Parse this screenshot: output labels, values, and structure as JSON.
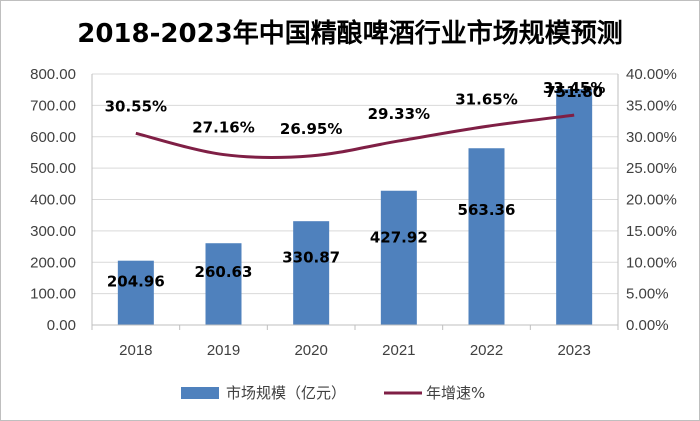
{
  "chart_data": {
    "type": "bar+line",
    "title": "2018-2023年中国精酿啤酒行业市场规模预测",
    "categories": [
      "2018",
      "2019",
      "2020",
      "2021",
      "2022",
      "2023"
    ],
    "series": [
      {
        "name": "市场规模（亿元）",
        "type": "bar",
        "axis": "left",
        "values": [
          204.96,
          260.63,
          330.87,
          427.92,
          563.36,
          751.8
        ],
        "labels": [
          "204.96",
          "260.63",
          "330.87",
          "427.92",
          "563.36",
          "751.80"
        ],
        "color": "#4f81bd"
      },
      {
        "name": "年增速%",
        "type": "line",
        "axis": "right",
        "values": [
          30.55,
          27.16,
          26.95,
          29.33,
          31.65,
          33.45
        ],
        "labels": [
          "30.55%",
          "27.16%",
          "26.95%",
          "29.33%",
          "31.65%",
          "33.45%"
        ],
        "color": "#7f1f45"
      }
    ],
    "y_left": {
      "range": [
        0,
        800
      ],
      "ticks": [
        "0.00",
        "100.00",
        "200.00",
        "300.00",
        "400.00",
        "500.00",
        "600.00",
        "700.00",
        "800.00"
      ]
    },
    "y_right": {
      "range": [
        0,
        40
      ],
      "ticks": [
        "0.00%",
        "5.00%",
        "10.00%",
        "15.00%",
        "20.00%",
        "25.00%",
        "30.00%",
        "35.00%",
        "40.00%"
      ]
    },
    "legend_position": "bottom",
    "grid": true
  }
}
